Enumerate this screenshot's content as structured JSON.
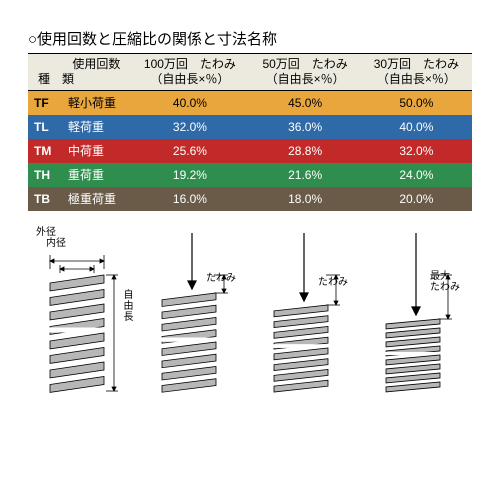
{
  "title": "○使用回数と圧縮比の関係と寸法名称",
  "header": {
    "kind_top": "使用回数",
    "kind_bottom": "種　類",
    "col1_top": "100万回　たわみ",
    "col1_bottom": "（自由長×％）",
    "col2_top": "50万回　たわみ",
    "col2_bottom": "（自由長×％）",
    "col3_top": "30万回　たわみ",
    "col3_bottom": "（自由長×％）"
  },
  "rows": [
    {
      "code": "TF",
      "name": "軽小荷重",
      "v1": "40.0%",
      "v2": "45.0%",
      "v3": "50.0%",
      "bg": "#e9a63c",
      "fg": "#000000"
    },
    {
      "code": "TL",
      "name": "軽荷重",
      "v1": "32.0%",
      "v2": "36.0%",
      "v3": "40.0%",
      "bg": "#2f6aa8",
      "fg": "#ffffff"
    },
    {
      "code": "TM",
      "name": "中荷重",
      "v1": "25.6%",
      "v2": "28.8%",
      "v3": "32.0%",
      "bg": "#c22a2a",
      "fg": "#ffffff"
    },
    {
      "code": "TH",
      "name": "重荷重",
      "v1": "19.2%",
      "v2": "21.6%",
      "v3": "24.0%",
      "bg": "#2f8e4e",
      "fg": "#ffffff"
    },
    {
      "code": "TB",
      "name": "極重荷重",
      "v1": "16.0%",
      "v2": "18.0%",
      "v3": "20.0%",
      "bg": "#6a5b48",
      "fg": "#ffffff"
    }
  ],
  "labels": {
    "outer": "外径",
    "inner": "内径",
    "free": "自由長",
    "deflect": "たわみ",
    "max_deflect_top": "最大",
    "max_deflect_bottom": "たわみ"
  },
  "style": {
    "header_bg": "#eceadf",
    "spring_fill": "#b7b7b7",
    "spring_stroke": "#000000",
    "page_bg": "#ffffff"
  }
}
